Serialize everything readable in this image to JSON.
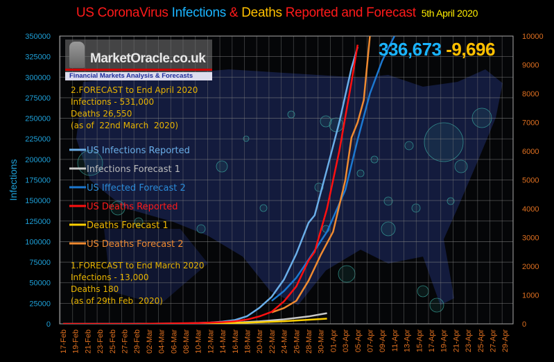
{
  "title": {
    "parts": [
      {
        "text": "US CoronaVirus ",
        "color": "#ff1a1a"
      },
      {
        "text": "Infections ",
        "color": "#1ab4ff"
      },
      {
        "text": "& ",
        "color": "#ff1a1a"
      },
      {
        "text": "Deaths ",
        "color": "#ffc000"
      },
      {
        "text": "Reported and Forecast",
        "color": "#ff1a1a"
      }
    ],
    "date": "5th April 2020",
    "date_color": "#ffee00"
  },
  "logo": {
    "name": "MarketOracle.co.uk",
    "tagline": "Financial Markets Analysis & Forecasts"
  },
  "headline": {
    "infections": "336,673",
    "deaths": "-9,696",
    "infections_color": "#1ab4ff",
    "deaths_color": "#ffc000"
  },
  "notes": {
    "forecast2": "2.FORECAST to End April 2020\nInfections - 531,000\nDeaths 26,550\n(as of  22nd March  2020)",
    "forecast1": "1.FORECAST to End March 2020\nInfections - 13,000\nDeaths 180\n(as of 29th Feb  2020)"
  },
  "chart_data": {
    "type": "line",
    "title": "US CoronaVirus Infections & Deaths Reported and Forecast 5th April 2020",
    "ylabel": "Infections",
    "ylim": [
      0,
      350000
    ],
    "y2lim": [
      0,
      10000
    ],
    "yticks": [
      "0",
      "25000",
      "50000",
      "75000",
      "100000",
      "125000",
      "150000",
      "175000",
      "200000",
      "225000",
      "250000",
      "275000",
      "300000",
      "325000",
      "350000"
    ],
    "y2ticks": [
      "0",
      "1000",
      "2000",
      "3000",
      "4000",
      "5000",
      "6000",
      "7000",
      "8000",
      "9000",
      "10000"
    ],
    "xticks": [
      "17-Feb",
      "19-Feb",
      "21-Feb",
      "23-Feb",
      "25-Feb",
      "27-Feb",
      "29-Feb",
      "02-Mar",
      "04-Mar",
      "06-Mar",
      "08-Mar",
      "10-Mar",
      "12-Mar",
      "14-Mar",
      "16-Mar",
      "18-Mar",
      "20-Mar",
      "22-Mar",
      "24-Mar",
      "26-Mar",
      "28-Mar",
      "30-Mar",
      "01-Apr",
      "03-Apr",
      "05-Apr",
      "07-Apr",
      "09-Apr",
      "11-Apr",
      "13-Apr",
      "15-Apr",
      "17-Apr",
      "19-Apr",
      "21-Apr",
      "23-Apr",
      "25-Apr",
      "27-Apr",
      "29-Apr"
    ],
    "grid": true,
    "legend_position": "left",
    "axis_colors": {
      "left": "#1ea0d8",
      "right": "#e07020"
    },
    "series": [
      {
        "name": "US Infections Reported",
        "axis": "left",
        "color": "#6aaee8",
        "label_color": "#6aaee8",
        "points": [
          [
            "17-Feb",
            15
          ],
          [
            "01-Mar",
            75
          ],
          [
            "08-Mar",
            540
          ],
          [
            "12-Mar",
            1600
          ],
          [
            "14-Mar",
            2700
          ],
          [
            "16-Mar",
            4600
          ],
          [
            "18-Mar",
            9400
          ],
          [
            "20-Mar",
            19600
          ],
          [
            "22-Mar",
            33000
          ],
          [
            "24-Mar",
            54000
          ],
          [
            "26-Mar",
            85000
          ],
          [
            "28-Mar",
            123000
          ],
          [
            "29-Mar",
            132000
          ],
          [
            "31-Mar",
            188000
          ],
          [
            "02-Apr",
            245000
          ],
          [
            "04-Apr",
            311000
          ],
          [
            "05-Apr",
            336673
          ]
        ]
      },
      {
        "name": "Infections Forecast 1",
        "axis": "left",
        "color": "#c8c8c8",
        "label_color": "#bbbbbb",
        "points": [
          [
            "29-Feb",
            0
          ],
          [
            "10-Mar",
            500
          ],
          [
            "16-Mar",
            1500
          ],
          [
            "20-Mar",
            3000
          ],
          [
            "24-Mar",
            5500
          ],
          [
            "28-Mar",
            9000
          ],
          [
            "31-Mar",
            13000
          ]
        ]
      },
      {
        "name": "US Iffected Forecast 2",
        "axis": "left",
        "color": "#1c78d0",
        "label_color": "#2a8ad8",
        "points": [
          [
            "22-Mar",
            28000
          ],
          [
            "24-Mar",
            40000
          ],
          [
            "26-Mar",
            56000
          ],
          [
            "28-Mar",
            78000
          ],
          [
            "31-Mar",
            112000
          ],
          [
            "03-Apr",
            163000
          ],
          [
            "05-Apr",
            224000
          ],
          [
            "07-Apr",
            280000
          ],
          [
            "09-Apr",
            320000
          ],
          [
            "11-Apr",
            350000
          ]
        ]
      },
      {
        "name": "US Deaths Reported",
        "axis": "right",
        "color": "#ff1010",
        "label_color": "#ff1a1a",
        "points": [
          [
            "17-Feb",
            0
          ],
          [
            "29-Feb",
            1
          ],
          [
            "10-Mar",
            30
          ],
          [
            "14-Mar",
            60
          ],
          [
            "16-Mar",
            90
          ],
          [
            "18-Mar",
            150
          ],
          [
            "20-Mar",
            260
          ],
          [
            "22-Mar",
            420
          ],
          [
            "24-Mar",
            780
          ],
          [
            "26-Mar",
            1300
          ],
          [
            "28-Mar",
            2200
          ],
          [
            "29-Mar",
            2500
          ],
          [
            "31-Mar",
            4000
          ],
          [
            "02-Apr",
            6000
          ],
          [
            "04-Apr",
            8400
          ],
          [
            "05-Apr",
            9696
          ]
        ]
      },
      {
        "name": "Deaths Forecast 1",
        "axis": "right",
        "color": "#ffd000",
        "label_color": "#f0b800",
        "points": [
          [
            "29-Feb",
            0
          ],
          [
            "10-Mar",
            10
          ],
          [
            "18-Mar",
            40
          ],
          [
            "24-Mar",
            90
          ],
          [
            "31-Mar",
            180
          ]
        ]
      },
      {
        "name": "US Deaths Forecast 2",
        "axis": "right",
        "color": "#f08a30",
        "label_color": "#f08a30",
        "points": [
          [
            "22-Mar",
            400
          ],
          [
            "24-Mar",
            550
          ],
          [
            "26-Mar",
            800
          ],
          [
            "28-Mar",
            1500
          ],
          [
            "30-Mar",
            2400
          ],
          [
            "01-Apr",
            3200
          ],
          [
            "03-Apr",
            5000
          ],
          [
            "04-Apr",
            6470
          ],
          [
            "05-Apr",
            7000
          ],
          [
            "06-Apr",
            7770
          ],
          [
            "07-Apr",
            10000
          ]
        ]
      }
    ]
  }
}
